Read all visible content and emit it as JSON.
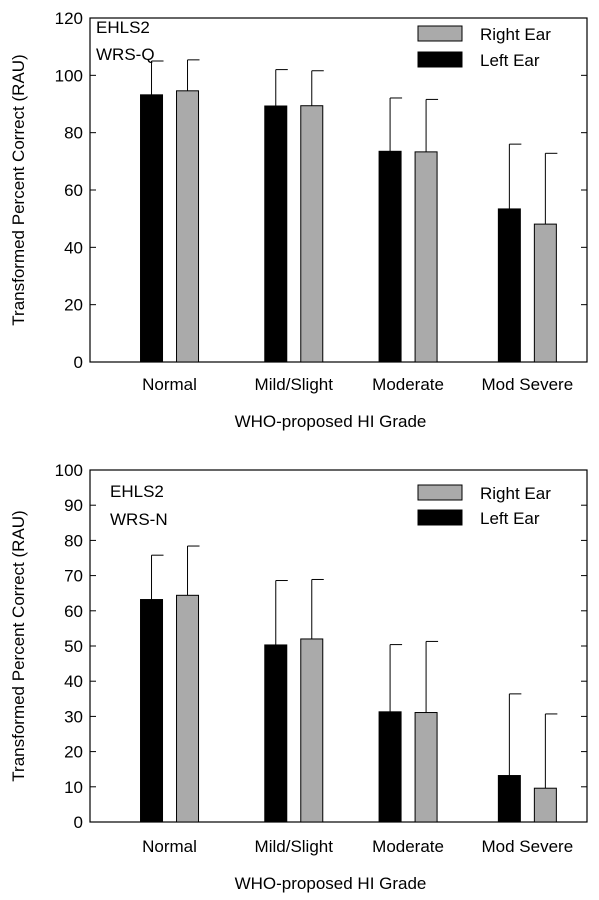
{
  "chart_data": [
    {
      "type": "bar",
      "annotation_lines": [
        "EHLS2",
        "WRS-Q"
      ],
      "xlabel": "WHO-proposed HI Grade",
      "ylabel": "Transformed Percent Correct (RAU)",
      "ylim": [
        0,
        120
      ],
      "yticks": [
        0,
        20,
        40,
        60,
        80,
        100,
        120
      ],
      "categories": [
        "Normal",
        "Mild/Slight",
        "Moderate",
        "Mod Severe"
      ],
      "legend_position": "top-right",
      "grid": false,
      "series": [
        {
          "name": "Left Ear",
          "color": "#000000",
          "values": [
            93.2,
            89.3,
            73.5,
            53.4
          ],
          "error": [
            11.8,
            12.7,
            18.6,
            22.6
          ]
        },
        {
          "name": "Right Ear",
          "color": "#aaaaaa",
          "values": [
            94.6,
            89.4,
            73.3,
            48.1
          ],
          "error": [
            10.8,
            12.2,
            18.3,
            24.7
          ]
        }
      ]
    },
    {
      "type": "bar",
      "annotation_lines": [
        "EHLS2",
        "WRS-N"
      ],
      "xlabel": "WHO-proposed HI Grade",
      "ylabel": "Transformed Percent Correct (RAU)",
      "ylim": [
        0,
        100
      ],
      "yticks": [
        0,
        10,
        20,
        30,
        40,
        50,
        60,
        70,
        80,
        90,
        100
      ],
      "categories": [
        "Normal",
        "Mild/Slight",
        "Moderate",
        "Mod Severe"
      ],
      "legend_position": "top-right",
      "grid": false,
      "series": [
        {
          "name": "Left Ear",
          "color": "#000000",
          "values": [
            63.2,
            50.3,
            31.3,
            13.2
          ],
          "error": [
            12.6,
            18.3,
            19.1,
            23.2
          ]
        },
        {
          "name": "Right Ear",
          "color": "#aaaaaa",
          "values": [
            64.4,
            52.0,
            31.1,
            9.6
          ],
          "error": [
            14.0,
            16.9,
            20.2,
            21.1
          ]
        }
      ]
    }
  ]
}
